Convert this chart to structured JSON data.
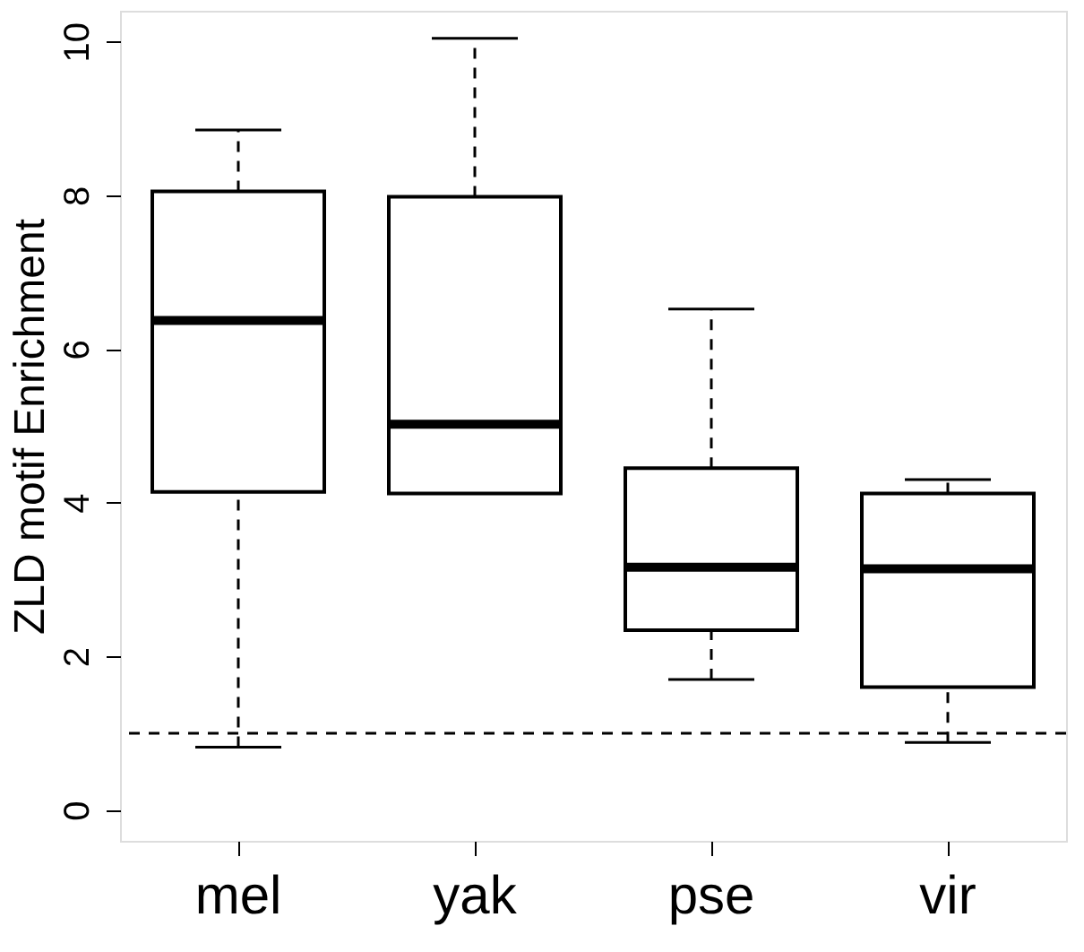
{
  "chart_data": {
    "type": "box",
    "ylabel": "ZLD motif Enrichment",
    "categories": [
      "mel",
      "yak",
      "pse",
      "vir"
    ],
    "boxes": [
      {
        "low": 0.82,
        "q1": 4.14,
        "median": 6.37,
        "q3": 8.05,
        "high": 8.85
      },
      {
        "low": 4.12,
        "q1": 4.12,
        "median": 5.02,
        "q3": 7.98,
        "high": 10.04
      },
      {
        "low": 1.7,
        "q1": 2.34,
        "median": 3.16,
        "q3": 4.45,
        "high": 6.52
      },
      {
        "low": 0.88,
        "q1": 1.6,
        "median": 3.14,
        "q3": 4.12,
        "high": 4.3
      }
    ],
    "ylim": [
      -0.4,
      10.4
    ],
    "yticks": [
      0,
      2,
      4,
      6,
      8,
      10
    ],
    "grid": false,
    "ref_lines": [
      {
        "axis": "y",
        "value": 1,
        "line_style": "dashed",
        "color": "#000000"
      }
    ]
  }
}
